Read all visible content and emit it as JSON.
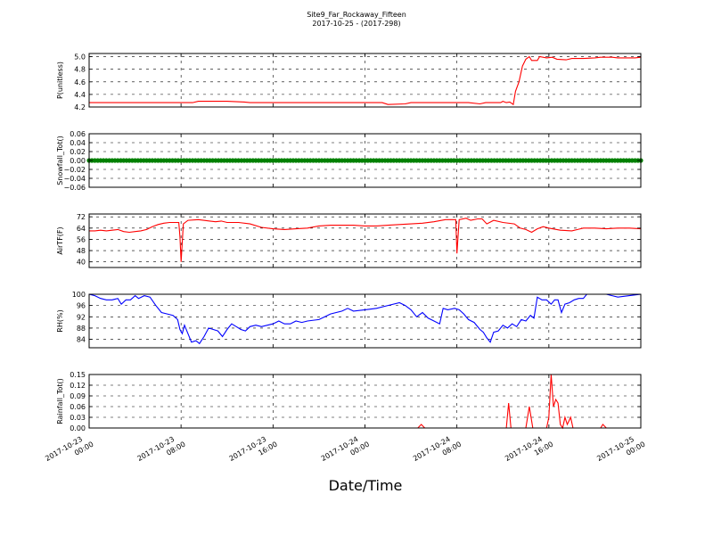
{
  "title": {
    "line1": "Site9_Far_Rockaway_Fifteen",
    "line2": "2017-10-25 - (2017-298)"
  },
  "xlabel": "Date/Time",
  "colors": {
    "red": "#ff0000",
    "green": "#008000",
    "blue": "#0000ff",
    "grid": "#000000"
  },
  "chart_data": [
    {
      "type": "line",
      "ylabel": "P(unitless)",
      "ylim": [
        4.2,
        5.05
      ],
      "yticks": [
        4.2,
        4.4,
        4.6,
        4.8,
        5.0
      ],
      "tick_labels": [
        "4.2",
        "4.4",
        "4.6",
        "4.8",
        "5.0"
      ],
      "color": "#ff0000",
      "grid": true,
      "points": [
        [
          0,
          4.27
        ],
        [
          3,
          4.27
        ],
        [
          6,
          4.27
        ],
        [
          9,
          4.27
        ],
        [
          9.5,
          4.29
        ],
        [
          12,
          4.29
        ],
        [
          13.5,
          4.28
        ],
        [
          14,
          4.27
        ],
        [
          20,
          4.27
        ],
        [
          25.5,
          4.27
        ],
        [
          26,
          4.24
        ],
        [
          27.5,
          4.25
        ],
        [
          28,
          4.27
        ],
        [
          33,
          4.27
        ],
        [
          34,
          4.25
        ],
        [
          34.5,
          4.27
        ],
        [
          35.8,
          4.27
        ],
        [
          36,
          4.29
        ],
        [
          36.3,
          4.27
        ],
        [
          36.6,
          4.28
        ],
        [
          36.9,
          4.24
        ],
        [
          37.1,
          4.45
        ],
        [
          37.4,
          4.6
        ],
        [
          37.7,
          4.85
        ],
        [
          38.0,
          4.96
        ],
        [
          38.3,
          5.0
        ],
        [
          38.5,
          4.94
        ],
        [
          39.0,
          4.94
        ],
        [
          39.2,
          5.0
        ],
        [
          39.8,
          4.98
        ],
        [
          40.3,
          4.99
        ],
        [
          40.7,
          4.96
        ],
        [
          41.5,
          4.95
        ],
        [
          42.0,
          4.97
        ],
        [
          43.0,
          4.97
        ],
        [
          44.0,
          4.98
        ],
        [
          44.5,
          4.99
        ],
        [
          45.5,
          4.99
        ],
        [
          46,
          4.98
        ],
        [
          47.5,
          4.98
        ],
        [
          48,
          4.99
        ]
      ]
    },
    {
      "type": "scatter",
      "ylabel": "Snowfall_Tot()",
      "ylim": [
        -0.06,
        0.06
      ],
      "yticks": [
        -0.06,
        -0.04,
        -0.02,
        0.0,
        0.02,
        0.04,
        0.06
      ],
      "tick_labels": [
        "−0.06",
        "−0.04",
        "−0.02",
        "0.00",
        "0.02",
        "0.04",
        "0.06"
      ],
      "color": "#008000",
      "grid": true,
      "constant_value": 0.0,
      "x_range": [
        0,
        48
      ],
      "step": 0.25
    },
    {
      "type": "line",
      "ylabel": "AirTF(F)",
      "ylim": [
        36,
        74
      ],
      "yticks": [
        40,
        48,
        56,
        64,
        72
      ],
      "tick_labels": [
        "40",
        "48",
        "56",
        "64",
        "72"
      ],
      "color": "#ff0000",
      "grid": true,
      "points": [
        [
          0,
          62
        ],
        [
          0.5,
          62
        ],
        [
          1,
          62.5
        ],
        [
          1.5,
          62
        ],
        [
          2,
          62.5
        ],
        [
          2.5,
          63
        ],
        [
          3,
          61.5
        ],
        [
          3.5,
          61
        ],
        [
          4,
          61.5
        ],
        [
          4.5,
          62
        ],
        [
          5,
          63
        ],
        [
          5.5,
          65
        ],
        [
          6,
          66.5
        ],
        [
          6.5,
          67.5
        ],
        [
          7,
          68
        ],
        [
          7.8,
          68
        ],
        [
          7.9,
          58
        ],
        [
          8.0,
          40
        ],
        [
          8.2,
          67
        ],
        [
          8.6,
          69.5
        ],
        [
          9.5,
          70
        ],
        [
          10.5,
          69
        ],
        [
          11,
          68.5
        ],
        [
          11.5,
          69
        ],
        [
          12,
          68
        ],
        [
          13,
          68
        ],
        [
          14,
          67
        ],
        [
          15,
          64.5
        ],
        [
          16,
          63.5
        ],
        [
          17,
          63
        ],
        [
          18,
          63.5
        ],
        [
          19,
          64
        ],
        [
          20,
          65.5
        ],
        [
          21,
          66
        ],
        [
          22,
          66
        ],
        [
          23,
          66
        ],
        [
          24,
          65.5
        ],
        [
          25,
          65.5
        ],
        [
          26,
          66
        ],
        [
          27,
          66.5
        ],
        [
          28,
          67
        ],
        [
          29,
          67.5
        ],
        [
          30,
          68.5
        ],
        [
          31,
          70
        ],
        [
          31.9,
          70
        ],
        [
          32.0,
          46
        ],
        [
          32.2,
          70
        ],
        [
          32.8,
          71
        ],
        [
          33.2,
          69.5
        ],
        [
          33.8,
          70.5
        ],
        [
          34.2,
          70.5
        ],
        [
          34.6,
          67
        ],
        [
          35.2,
          69.5
        ],
        [
          36,
          68
        ],
        [
          37,
          67
        ],
        [
          37.5,
          64
        ],
        [
          38,
          63
        ],
        [
          38.5,
          61
        ],
        [
          39,
          63.5
        ],
        [
          39.5,
          65
        ],
        [
          40,
          64
        ],
        [
          41,
          62.5
        ],
        [
          42,
          62
        ],
        [
          42.5,
          63
        ],
        [
          43,
          64
        ],
        [
          44,
          64
        ],
        [
          45,
          63.5
        ],
        [
          46,
          64
        ],
        [
          47,
          64
        ],
        [
          48,
          63.5
        ]
      ]
    },
    {
      "type": "line",
      "ylabel": "RH(%)",
      "ylim": [
        81,
        100
      ],
      "yticks": [
        84,
        88,
        92,
        96,
        100
      ],
      "tick_labels": [
        "84",
        "88",
        "92",
        "96",
        "100"
      ],
      "color": "#0000ff",
      "grid": true,
      "points": [
        [
          0,
          100
        ],
        [
          0.5,
          99.5
        ],
        [
          1,
          98.5
        ],
        [
          1.5,
          98
        ],
        [
          2,
          98
        ],
        [
          2.5,
          98.5
        ],
        [
          2.8,
          96.5
        ],
        [
          3.2,
          98
        ],
        [
          3.6,
          98
        ],
        [
          4.0,
          99.5
        ],
        [
          4.3,
          98.5
        ],
        [
          4.8,
          99.5
        ],
        [
          5.3,
          99
        ],
        [
          5.8,
          96
        ],
        [
          6.3,
          93.5
        ],
        [
          6.8,
          93
        ],
        [
          7.3,
          92.5
        ],
        [
          7.7,
          91
        ],
        [
          7.9,
          87.5
        ],
        [
          8.1,
          86
        ],
        [
          8.3,
          89
        ],
        [
          8.6,
          86
        ],
        [
          8.9,
          83
        ],
        [
          9.3,
          83.5
        ],
        [
          9.6,
          82.5
        ],
        [
          10,
          85
        ],
        [
          10.4,
          88
        ],
        [
          10.8,
          87.5
        ],
        [
          11.2,
          87
        ],
        [
          11.6,
          85
        ],
        [
          12,
          87.5
        ],
        [
          12.4,
          89.5
        ],
        [
          12.8,
          88.5
        ],
        [
          13.2,
          87.5
        ],
        [
          13.6,
          87
        ],
        [
          14,
          88.5
        ],
        [
          14.5,
          89
        ],
        [
          15,
          88.5
        ],
        [
          16,
          89.5
        ],
        [
          16.5,
          90.5
        ],
        [
          17,
          89.5
        ],
        [
          17.5,
          89.5
        ],
        [
          18,
          90.5
        ],
        [
          18.5,
          90
        ],
        [
          19,
          90.5
        ],
        [
          20,
          91
        ],
        [
          20.5,
          92
        ],
        [
          21,
          93
        ],
        [
          22,
          94
        ],
        [
          22.5,
          95
        ],
        [
          23,
          94
        ],
        [
          24,
          94.5
        ],
        [
          25,
          95
        ],
        [
          26,
          96
        ],
        [
          27,
          97
        ],
        [
          27.5,
          96
        ],
        [
          28,
          94.5
        ],
        [
          28.5,
          92
        ],
        [
          29,
          93.5
        ],
        [
          29.5,
          91.5
        ],
        [
          30,
          90.5
        ],
        [
          30.5,
          89.5
        ],
        [
          30.8,
          95
        ],
        [
          31.2,
          94.5
        ],
        [
          31.8,
          95
        ],
        [
          32.2,
          94.5
        ],
        [
          32.6,
          93
        ],
        [
          33,
          91
        ],
        [
          33.5,
          90
        ],
        [
          34,
          87.5
        ],
        [
          34.3,
          86.5
        ],
        [
          34.6,
          84.5
        ],
        [
          34.9,
          83
        ],
        [
          35.2,
          86.5
        ],
        [
          35.6,
          87
        ],
        [
          36,
          89
        ],
        [
          36.4,
          88
        ],
        [
          36.8,
          89.5
        ],
        [
          37.2,
          88.5
        ],
        [
          37.6,
          91
        ],
        [
          38.0,
          90.5
        ],
        [
          38.4,
          92.5
        ],
        [
          38.7,
          91.5
        ],
        [
          39.0,
          99
        ],
        [
          39.4,
          98
        ],
        [
          39.8,
          98
        ],
        [
          40.2,
          96.5
        ],
        [
          40.5,
          98
        ],
        [
          40.8,
          98
        ],
        [
          41.1,
          93.5
        ],
        [
          41.4,
          96.5
        ],
        [
          41.8,
          97
        ],
        [
          42.2,
          98
        ],
        [
          42.6,
          98.5
        ],
        [
          43,
          98.5
        ],
        [
          43.3,
          100
        ],
        [
          44,
          100
        ],
        [
          45,
          100
        ],
        [
          45.5,
          99.5
        ],
        [
          46,
          99
        ],
        [
          47,
          99.5
        ],
        [
          48,
          100
        ]
      ]
    },
    {
      "type": "line",
      "ylabel": "Rainfall_Tot()",
      "ylim": [
        0,
        0.15
      ],
      "yticks": [
        0.0,
        0.03,
        0.06,
        0.09,
        0.12,
        0.15
      ],
      "tick_labels": [
        "0.00",
        "0.03",
        "0.06",
        "0.09",
        "0.12",
        "0.15"
      ],
      "color": "#ff0000",
      "grid": true,
      "points": [
        [
          0,
          0
        ],
        [
          28.6,
          0
        ],
        [
          28.9,
          0.01
        ],
        [
          29.2,
          0
        ],
        [
          36.3,
          0
        ],
        [
          36.5,
          0.07
        ],
        [
          36.7,
          0
        ],
        [
          38.0,
          0
        ],
        [
          38.3,
          0.06
        ],
        [
          38.6,
          0
        ],
        [
          39.8,
          0
        ],
        [
          40.0,
          0.03
        ],
        [
          40.2,
          0.15
        ],
        [
          40.4,
          0.06
        ],
        [
          40.6,
          0.08
        ],
        [
          40.8,
          0.07
        ],
        [
          41.0,
          0.01
        ],
        [
          41.2,
          0.0
        ],
        [
          41.4,
          0.03
        ],
        [
          41.6,
          0.01
        ],
        [
          41.9,
          0.03
        ],
        [
          42.1,
          0
        ],
        [
          44.5,
          0
        ],
        [
          44.7,
          0.01
        ],
        [
          45.0,
          0
        ],
        [
          48,
          0
        ]
      ]
    }
  ],
  "x_axis": {
    "range_hours": [
      0,
      48
    ],
    "ticks_hours": [
      0,
      8,
      16,
      24,
      32,
      40,
      48
    ],
    "tick_labels": [
      [
        "2017-10-23",
        "00:00"
      ],
      [
        "2017-10-23",
        "08:00"
      ],
      [
        "2017-10-23",
        "16:00"
      ],
      [
        "2017-10-24",
        "00:00"
      ],
      [
        "2017-10-24",
        "08:00"
      ],
      [
        "2017-10-24",
        "16:00"
      ],
      [
        "2017-10-25",
        "00:00"
      ]
    ]
  }
}
